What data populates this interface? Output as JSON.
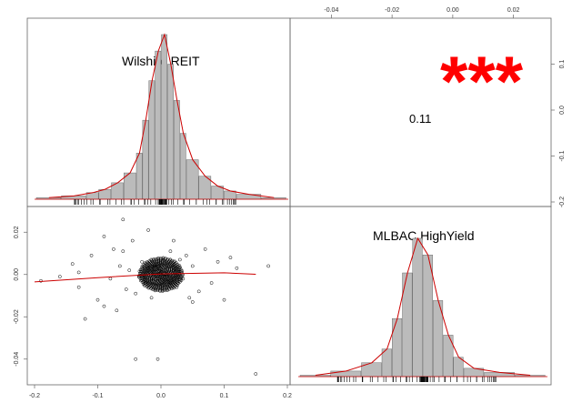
{
  "chart_data": {
    "type": "scatter",
    "variables": [
      "Wilshire.REIT",
      "MLBAC.HighYield"
    ],
    "correlation": {
      "value": "0.11",
      "stars": "***",
      "stars_color": "#ff0000"
    },
    "axes": {
      "bottom_ticks": [
        "-0.2",
        "-0.1",
        "0.0",
        "0.1",
        "0.2"
      ],
      "bottom_range": [
        -0.2,
        0.2
      ],
      "left_ticks": [
        "0.02",
        "0.00",
        "-0.02",
        "-0.04"
      ],
      "left_range": [
        -0.05,
        0.03
      ],
      "top_ticks": [
        "-0.04",
        "-0.02",
        "0.00",
        "0.02"
      ],
      "top_range": [
        -0.05,
        0.03
      ],
      "right_ticks": [
        "0.1",
        "0.0",
        "-0.1",
        "-0.2"
      ],
      "right_range": [
        -0.2,
        0.2
      ]
    },
    "histogram_reit": {
      "bins": [
        -0.05,
        -0.04,
        -0.03,
        -0.025,
        -0.02,
        -0.015,
        -0.01,
        -0.0075,
        -0.005,
        -0.0025,
        0.0,
        0.0025,
        0.005,
        0.0075,
        0.01,
        0.015,
        0.02,
        0.025,
        0.03,
        0.04,
        0.05
      ],
      "heights": [
        0.01,
        0.02,
        0.04,
        0.06,
        0.1,
        0.16,
        0.28,
        0.48,
        0.72,
        0.9,
        1.0,
        0.82,
        0.6,
        0.4,
        0.24,
        0.14,
        0.08,
        0.05,
        0.03,
        0.01
      ]
    },
    "histogram_highyield": {
      "bins": [
        -0.012,
        -0.009,
        -0.006,
        -0.004,
        -0.003,
        -0.002,
        -0.001,
        0.0,
        0.001,
        0.002,
        0.003,
        0.004,
        0.006,
        0.009,
        0.012
      ],
      "heights": [
        0.01,
        0.04,
        0.1,
        0.2,
        0.42,
        0.75,
        1.0,
        0.88,
        0.55,
        0.3,
        0.14,
        0.06,
        0.03,
        0.01
      ]
    },
    "loess_line": {
      "x": [
        -0.2,
        -0.1,
        0.0,
        0.1,
        0.15
      ],
      "y": [
        -0.0035,
        -0.0015,
        0.0003,
        0.0008,
        0.0001
      ],
      "color": "#cc0000"
    },
    "scatter_points": [
      [
        -0.19,
        -0.003
      ],
      [
        -0.16,
        -0.001
      ],
      [
        -0.14,
        0.005
      ],
      [
        -0.13,
        -0.006
      ],
      [
        -0.12,
        -0.021
      ],
      [
        -0.11,
        0.009
      ],
      [
        -0.1,
        -0.012
      ],
      [
        -0.09,
        0.018
      ],
      [
        -0.08,
        -0.002
      ],
      [
        -0.075,
        0.012
      ],
      [
        -0.07,
        -0.017
      ],
      [
        -0.065,
        0.004
      ],
      [
        -0.06,
        0.011
      ],
      [
        -0.055,
        -0.007
      ],
      [
        -0.05,
        0.002
      ],
      [
        -0.045,
        0.016
      ],
      [
        -0.04,
        -0.009
      ],
      [
        -0.035,
        -0.001
      ],
      [
        -0.03,
        0.006
      ],
      [
        -0.025,
        -0.004
      ],
      [
        -0.02,
        0.003
      ],
      [
        -0.015,
        -0.002
      ],
      [
        -0.01,
        0.004
      ],
      [
        -0.005,
        -0.003
      ],
      [
        0.0,
        0.001
      ],
      [
        0.005,
        -0.001
      ],
      [
        0.01,
        0.003
      ],
      [
        0.015,
        -0.004
      ],
      [
        0.02,
        0.002
      ],
      [
        0.025,
        -0.006
      ],
      [
        0.03,
        0.007
      ],
      [
        0.035,
        -0.002
      ],
      [
        0.04,
        0.009
      ],
      [
        0.045,
        -0.011
      ],
      [
        0.05,
        0.004
      ],
      [
        0.06,
        -0.008
      ],
      [
        0.07,
        0.012
      ],
      [
        0.08,
        -0.004
      ],
      [
        0.09,
        0.006
      ],
      [
        0.1,
        -0.012
      ],
      [
        0.12,
        0.003
      ],
      [
        0.15,
        -0.047
      ],
      [
        0.17,
        0.004
      ],
      [
        -0.04,
        -0.04
      ],
      [
        -0.005,
        -0.04
      ],
      [
        -0.06,
        0.026
      ],
      [
        -0.02,
        0.021
      ],
      [
        0.02,
        0.016
      ],
      [
        0.05,
        -0.013
      ],
      [
        -0.09,
        -0.015
      ],
      [
        0.11,
        0.008
      ],
      [
        -0.13,
        0.001
      ],
      [
        0.015,
        0.011
      ],
      [
        -0.015,
        -0.011
      ]
    ]
  }
}
